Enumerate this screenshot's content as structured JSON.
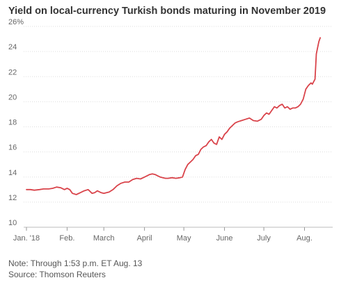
{
  "chart_data": {
    "type": "line",
    "title": "Yield on local-currency Turkish bonds maturing in November 2019",
    "xlabel": "",
    "ylabel": "",
    "ylim": [
      10,
      26
    ],
    "y_ticks": [
      10,
      12,
      14,
      16,
      18,
      20,
      22,
      24,
      26
    ],
    "y_tick_labels": [
      "10",
      "12",
      "14",
      "16",
      "18",
      "20",
      "22",
      "24",
      "26%"
    ],
    "x_ticks": [
      {
        "label": "Jan. '18",
        "day": 1
      },
      {
        "label": "Feb.",
        "day": 32
      },
      {
        "label": "March",
        "day": 60
      },
      {
        "label": "April",
        "day": 91
      },
      {
        "label": "May",
        "day": 121
      },
      {
        "label": "June",
        "day": 152
      },
      {
        "label": "July",
        "day": 182
      },
      {
        "label": "Aug.",
        "day": 213
      }
    ],
    "grid": true,
    "color": "#d9434a",
    "series": [
      {
        "name": "",
        "x": [
          1,
          4,
          7,
          11,
          14,
          18,
          21,
          24,
          27,
          30,
          32,
          34,
          36,
          39,
          42,
          45,
          48,
          51,
          53,
          55,
          58,
          60,
          62,
          64,
          67,
          70,
          73,
          76,
          79,
          82,
          85,
          88,
          91,
          93,
          95,
          97,
          99,
          101,
          103,
          105,
          107,
          109,
          112,
          115,
          118,
          120,
          122,
          124,
          126,
          128,
          130,
          132,
          134,
          136,
          138,
          140,
          142,
          144,
          146,
          148,
          150,
          152,
          154,
          156,
          158,
          160,
          162,
          165,
          168,
          171,
          174,
          177,
          180,
          182,
          184,
          186,
          188,
          190,
          192,
          194,
          196,
          198,
          200,
          202,
          204,
          206,
          208,
          210,
          212,
          214,
          216,
          218,
          219,
          220,
          221,
          222,
          223,
          224,
          225
        ],
        "y": [
          13.0,
          13.0,
          12.95,
          13.0,
          13.05,
          13.05,
          13.1,
          13.2,
          13.15,
          13.0,
          13.1,
          13.0,
          12.7,
          12.6,
          12.75,
          12.9,
          13.0,
          12.7,
          12.75,
          12.9,
          12.75,
          12.7,
          12.75,
          12.8,
          13.0,
          13.3,
          13.5,
          13.6,
          13.6,
          13.8,
          13.9,
          13.85,
          14.0,
          14.1,
          14.2,
          14.25,
          14.2,
          14.1,
          14.0,
          13.95,
          13.9,
          13.9,
          13.95,
          13.9,
          13.95,
          14.0,
          14.6,
          15.0,
          15.2,
          15.4,
          15.7,
          15.8,
          16.2,
          16.4,
          16.5,
          16.8,
          17.0,
          16.7,
          16.6,
          17.2,
          17.0,
          17.4,
          17.6,
          17.9,
          18.1,
          18.3,
          18.4,
          18.5,
          18.6,
          18.7,
          18.5,
          18.45,
          18.6,
          18.9,
          19.1,
          19.0,
          19.3,
          19.6,
          19.5,
          19.7,
          19.8,
          19.5,
          19.6,
          19.4,
          19.5,
          19.5,
          19.6,
          19.8,
          20.2,
          21.0,
          21.3,
          21.5,
          21.4,
          21.6,
          21.8,
          23.8,
          24.3,
          24.8,
          25.1
        ]
      }
    ]
  },
  "note": "Note: Through 1:53 p.m. ET Aug. 13",
  "source": "Source: Thomson Reuters"
}
